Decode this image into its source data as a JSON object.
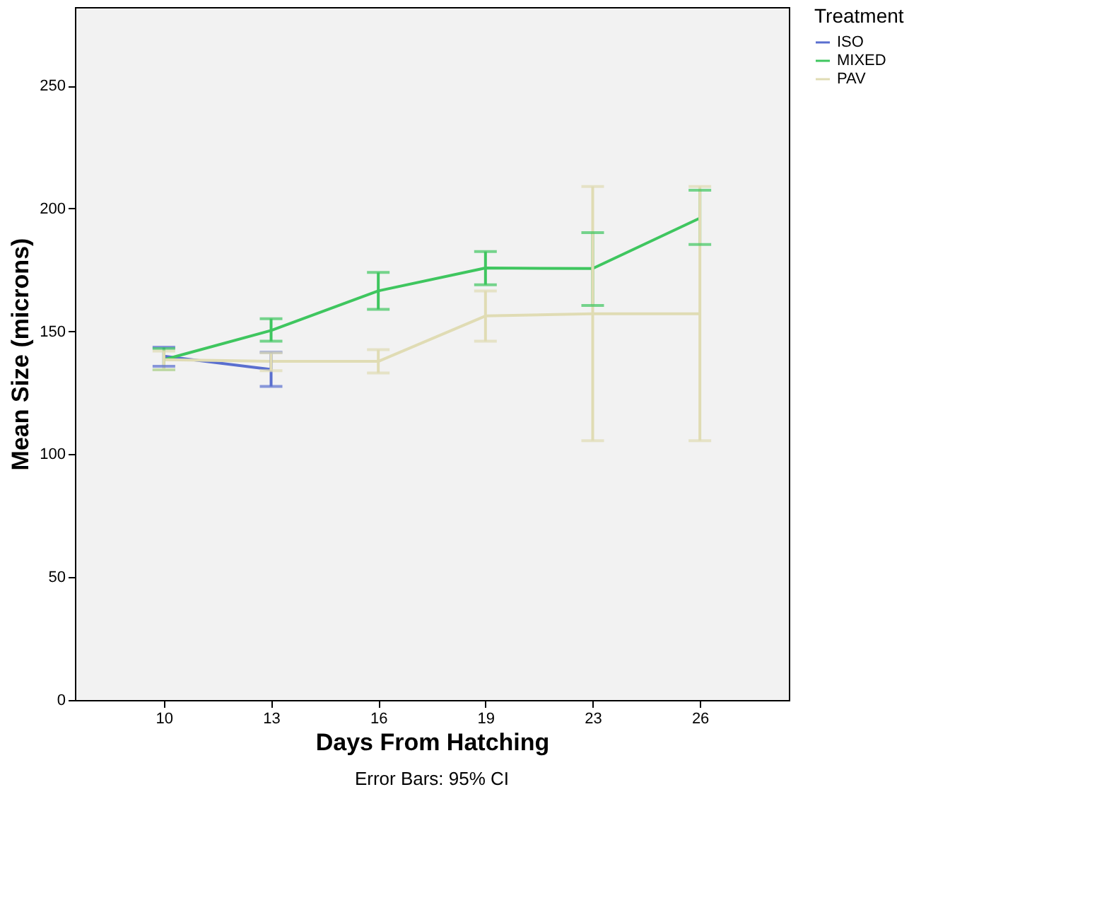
{
  "chart_data": {
    "type": "line",
    "xlabel": "Days From Hatching",
    "ylabel": "Mean Size (microns)",
    "legend_title": "Treatment",
    "categories": [
      "10",
      "13",
      "16",
      "19",
      "23",
      "26"
    ],
    "series": [
      {
        "name": "ISO",
        "color": "#5a6fcf",
        "values": [
          139.9,
          134.5,
          null,
          null,
          null,
          null
        ],
        "errors": [
          [
            135.8,
            143.6
          ],
          [
            127.6,
            141.5
          ],
          null,
          null,
          null,
          null
        ]
      },
      {
        "name": "MIXED",
        "color": "#3fc65f",
        "values": [
          138.5,
          150.4,
          166.5,
          175.8,
          175.6,
          196.1
        ],
        "errors": [
          [
            134.4,
            143
          ],
          [
            146,
            155.2
          ],
          [
            159,
            174
          ],
          [
            169,
            182.5
          ],
          [
            160.6,
            190.2
          ],
          [
            185.4,
            207.5
          ]
        ]
      },
      {
        "name": "PAV",
        "color": "#e0dcb4",
        "values": [
          138.5,
          137.8,
          137.8,
          156.3,
          157.2,
          157.2
        ],
        "errors": [
          [
            134.4,
            142
          ],
          [
            134,
            141.3
          ],
          [
            133.1,
            142.6
          ],
          [
            146,
            166.5
          ],
          [
            105.5,
            209
          ],
          [
            105.5,
            209
          ]
        ]
      }
    ],
    "ylim": [
      0,
      282
    ],
    "yticks": [
      0,
      50,
      100,
      150,
      200,
      250
    ],
    "grid": false,
    "legend": "top right",
    "marker": "none",
    "line_style": "solid",
    "annotations": [
      "Error Bars: 95% CI"
    ]
  }
}
